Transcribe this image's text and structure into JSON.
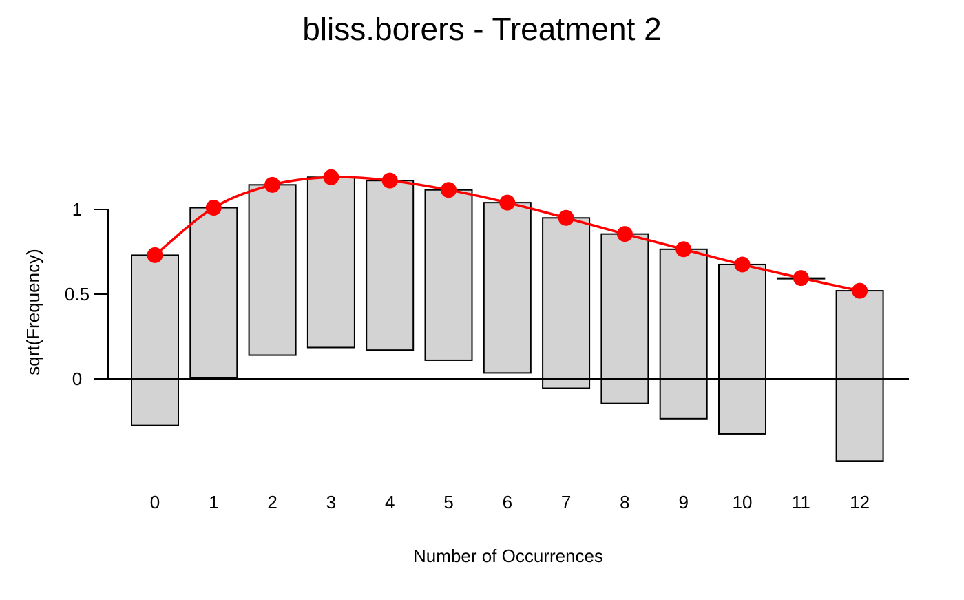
{
  "chart_data": {
    "type": "bar",
    "subtype": "hanging-rootogram",
    "title": "bliss.borers - Treatment 2",
    "xlabel": "Number of Occurrences",
    "ylabel": "sqrt(Frequency)",
    "categories": [
      "0",
      "1",
      "2",
      "3",
      "4",
      "5",
      "6",
      "7",
      "8",
      "9",
      "10",
      "11",
      "12"
    ],
    "ylim": [
      -0.62,
      1.7
    ],
    "yticks": [
      0,
      0.5,
      1
    ],
    "ytick_labels": [
      "0",
      "0.5",
      "1"
    ],
    "grid": false,
    "legend": "none",
    "series": [
      {
        "kind": "hanging-bars",
        "tops": [
          0.73,
          1.01,
          1.145,
          1.19,
          1.17,
          1.115,
          1.04,
          0.95,
          0.855,
          0.765,
          0.675,
          0.595,
          0.52
        ],
        "bottoms": [
          -0.275,
          0.005,
          0.14,
          0.185,
          0.17,
          0.11,
          0.035,
          -0.055,
          -0.145,
          -0.235,
          -0.325,
          0.595,
          -0.485
        ]
      },
      {
        "kind": "fitted-line",
        "values": [
          0.73,
          1.01,
          1.145,
          1.19,
          1.17,
          1.115,
          1.04,
          0.95,
          0.855,
          0.765,
          0.675,
          0.595,
          0.52
        ]
      }
    ],
    "colors": {
      "bar_fill": "#d3d3d3",
      "bar_stroke": "#000000",
      "line": "#ff0000",
      "points": "#ff0000",
      "axis": "#000000"
    }
  }
}
